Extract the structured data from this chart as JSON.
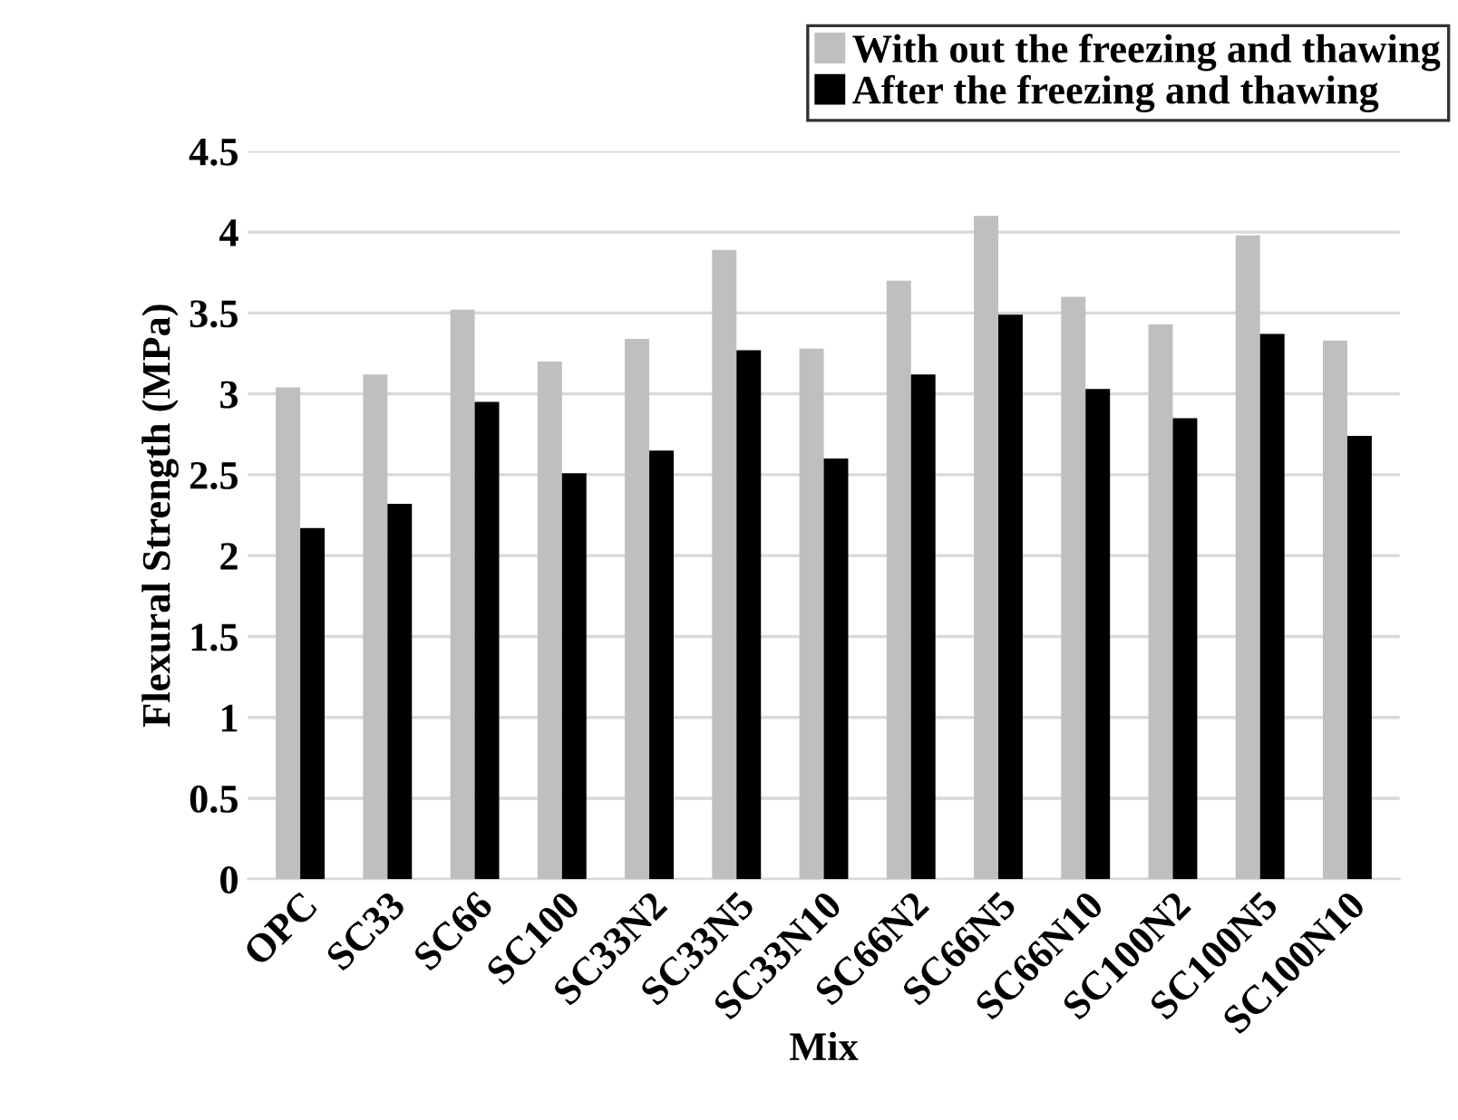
{
  "chart_data": {
    "type": "bar",
    "xlabel": "Mix",
    "ylabel": "Flexural Strength (MPa)",
    "categories": [
      "OPC",
      "SC33",
      "SC66",
      "SC100",
      "SC33N2",
      "SC33N5",
      "SC33N10",
      "SC66N2",
      "SC66N5",
      "SC66N10",
      "SC100N2",
      "SC100N5",
      "SC100N10"
    ],
    "series": [
      {
        "name": "With out the freezing and thawing",
        "color": "#bfbfbf",
        "values": [
          3.04,
          3.12,
          3.52,
          3.2,
          3.34,
          3.89,
          3.28,
          3.7,
          4.1,
          3.6,
          3.43,
          3.98,
          3.33
        ]
      },
      {
        "name": "After the freezing and thawing",
        "color": "#000000",
        "values": [
          2.17,
          2.32,
          2.95,
          2.51,
          2.65,
          3.27,
          2.6,
          3.12,
          3.49,
          3.03,
          2.85,
          3.37,
          2.74
        ]
      }
    ],
    "ylim": [
      0,
      4.5
    ],
    "yticks": [
      0,
      0.5,
      1,
      1.5,
      2,
      2.5,
      3,
      3.5,
      4,
      4.5
    ],
    "grid": "y",
    "legend": "top right"
  }
}
